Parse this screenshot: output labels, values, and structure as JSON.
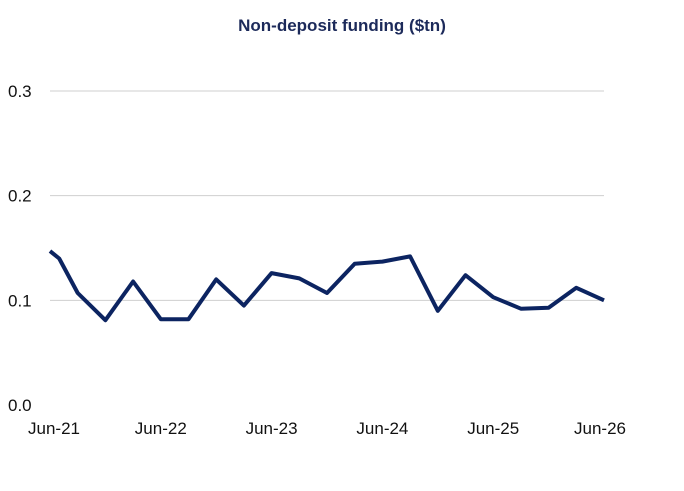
{
  "chart_data": {
    "type": "line",
    "title": "Non-deposit funding ($tn)",
    "xlabel": "",
    "ylabel": "",
    "ylim": [
      0,
      0.3
    ],
    "y_ticks": [
      0.0,
      0.1,
      0.2,
      0.3
    ],
    "y_tick_labels": [
      "0.0",
      "0.1",
      "0.2",
      "0.3"
    ],
    "x_tick_labels": [
      "Jun-21",
      "Jun-22",
      "Jun-23",
      "Jun-24",
      "Jun-25",
      "Jun-26"
    ],
    "x_tick_dates": [
      "2021-06",
      "2022-06",
      "2023-06",
      "2024-06",
      "2025-06",
      "2026-06"
    ],
    "grid": true,
    "line_color": "#0c2461",
    "grid_color": "#cfcfcf",
    "series": [
      {
        "x": [
          "2021-06",
          "2021-07",
          "2021-09",
          "2021-12",
          "2022-03",
          "2022-06",
          "2022-09",
          "2022-12",
          "2023-03",
          "2023-06",
          "2023-09",
          "2023-12",
          "2024-03",
          "2024-06",
          "2024-09",
          "2024-12",
          "2025-03",
          "2025-06",
          "2025-09",
          "2025-12",
          "2026-03",
          "2026-06"
        ],
        "values": [
          0.147,
          0.14,
          0.107,
          0.081,
          0.118,
          0.082,
          0.082,
          0.12,
          0.095,
          0.126,
          0.121,
          0.107,
          0.135,
          0.137,
          0.142,
          0.09,
          0.124,
          0.103,
          0.092,
          0.093,
          0.112,
          0.1
        ]
      }
    ]
  }
}
